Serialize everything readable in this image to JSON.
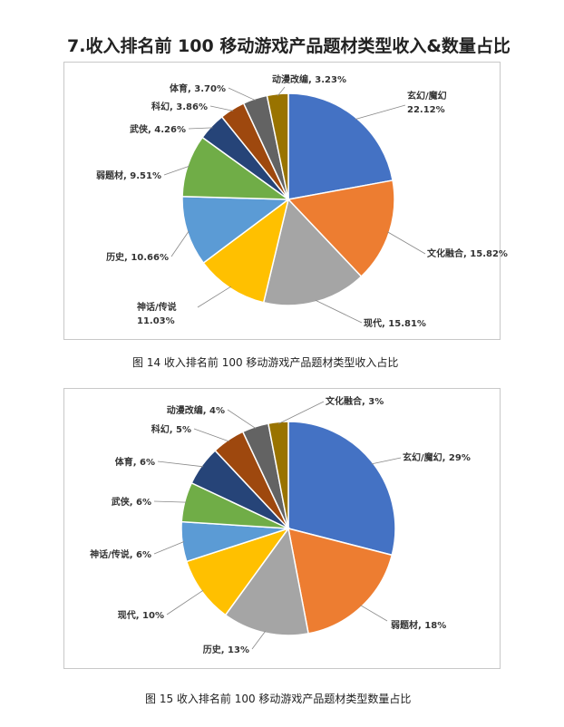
{
  "heading": "7.收入排名前 100 移动游戏产品题材类型收入&数量占比",
  "captions": {
    "fig14": "图 14 收入排名前 100 移动游戏产品题材类型收入占比",
    "fig15": "图 15 收入排名前 100 移动游戏产品题材类型数量占比"
  },
  "chart_data": [
    {
      "type": "pie",
      "slices": [
        {
          "label": "玄幻/魔幻",
          "pct_text": "22.12%",
          "value": 22.12,
          "color": "#4472C4"
        },
        {
          "label": "文化融合",
          "pct_text": "15.82%",
          "value": 15.82,
          "color": "#ED7D31"
        },
        {
          "label": "现代",
          "pct_text": "15.81%",
          "value": 15.81,
          "color": "#A5A5A5"
        },
        {
          "label": "神话/传说",
          "pct_text": "11.03%",
          "value": 11.03,
          "color": "#FFC000"
        },
        {
          "label": "历史",
          "pct_text": "10.66%",
          "value": 10.66,
          "color": "#5B9BD5"
        },
        {
          "label": "弱题材",
          "pct_text": "9.51%",
          "value": 9.51,
          "color": "#70AD47"
        },
        {
          "label": "武侠",
          "pct_text": "4.26%",
          "value": 4.26,
          "color": "#264478"
        },
        {
          "label": "科幻",
          "pct_text": "3.86%",
          "value": 3.86,
          "color": "#9E480E"
        },
        {
          "label": "体育",
          "pct_text": "3.70%",
          "value": 3.7,
          "color": "#636363"
        },
        {
          "label": "动漫改编",
          "pct_text": "3.23%",
          "value": 3.23,
          "color": "#997300"
        }
      ]
    },
    {
      "type": "pie",
      "slices": [
        {
          "label": "玄幻/魔幻",
          "pct_text": "29%",
          "value": 29,
          "color": "#4472C4"
        },
        {
          "label": "弱题材",
          "pct_text": "18%",
          "value": 18,
          "color": "#ED7D31"
        },
        {
          "label": "历史",
          "pct_text": "13%",
          "value": 13,
          "color": "#A5A5A5"
        },
        {
          "label": "现代",
          "pct_text": "10%",
          "value": 10,
          "color": "#FFC000"
        },
        {
          "label": "神话/传说",
          "pct_text": "6%",
          "value": 6,
          "color": "#5B9BD5"
        },
        {
          "label": "武侠",
          "pct_text": "6%",
          "value": 6,
          "color": "#70AD47"
        },
        {
          "label": "体育",
          "pct_text": "6%",
          "value": 6,
          "color": "#264478"
        },
        {
          "label": "科幻",
          "pct_text": "5%",
          "value": 5,
          "color": "#9E480E"
        },
        {
          "label": "动漫改编",
          "pct_text": "4%",
          "value": 4,
          "color": "#636363"
        },
        {
          "label": "文化融合",
          "pct_text": "3%",
          "value": 3,
          "color": "#997300"
        }
      ]
    }
  ]
}
